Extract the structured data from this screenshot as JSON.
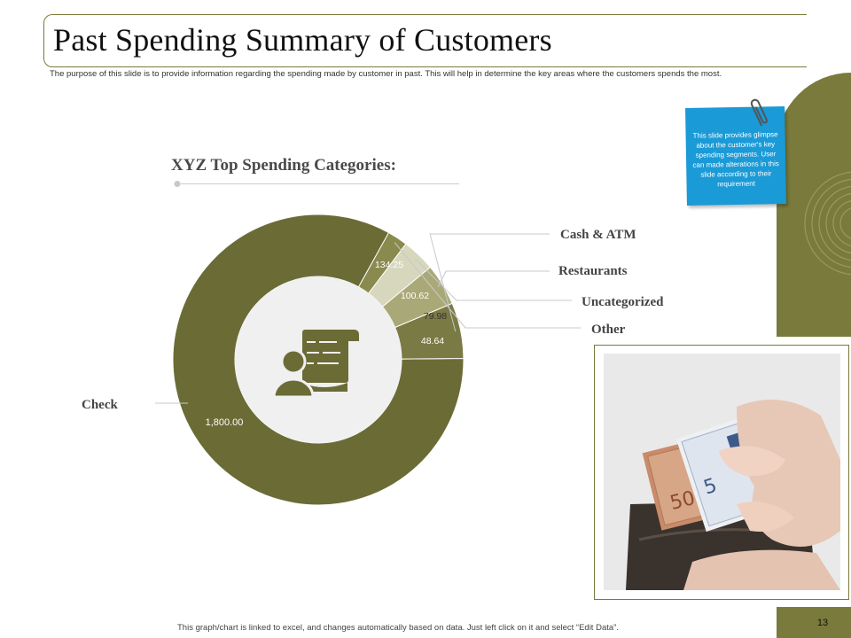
{
  "slide": {
    "title": "Past Spending Summary of Customers",
    "subtitle": "The purpose of this slide is to provide information regarding the spending made by customer in past. This will help in determine the key areas where the customers spends the most.",
    "note": "This slide provides glimpse about the customer's key spending segments. User can made alterations in this slide according to their requirement",
    "footer": "This graph/chart is linked to excel, and changes automatically based on data. Just left click on it and select “Edit Data”.",
    "page_number": "13"
  },
  "colors": {
    "accent": "#7a7a3c",
    "note_blue": "#1a9ad6"
  },
  "icons": {
    "center": "customer-receipt-icon",
    "clip": "paperclip-icon",
    "photo": "wallet-cash-photo"
  },
  "chart_data": {
    "type": "pie",
    "variant": "donut",
    "title": "XYZ Top Spending Categories:",
    "categories": [
      "Check",
      "Cash & ATM",
      "Restaurants",
      "Uncategorized",
      "Other"
    ],
    "values": [
      1800.0,
      134.25,
      100.62,
      79.98,
      48.64
    ],
    "value_labels": [
      "1,800.00",
      "134.25",
      "100.62",
      "79.98",
      "48.64"
    ],
    "colors": [
      "#6b6b36",
      "#7a7a45",
      "#a9a978",
      "#d7d7bd",
      "#8a8a4e"
    ]
  }
}
